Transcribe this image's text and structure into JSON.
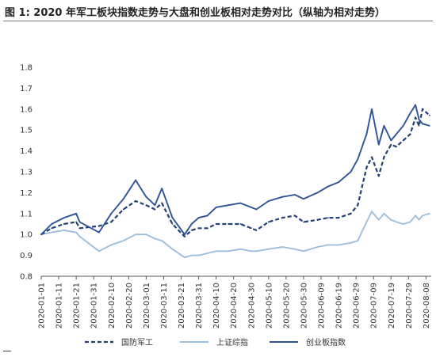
{
  "chart_data": {
    "type": "line",
    "title": "图 1:  2020 年军工板块指数走势与大盘和创业板相对走势对比（纵轴为相对走势）",
    "xlabel": "",
    "ylabel": "",
    "ylim": [
      0.8,
      1.8
    ],
    "yticks": [
      "0.8",
      "0.9",
      "1.0",
      "1.1",
      "1.2",
      "1.3",
      "1.4",
      "1.5",
      "1.6",
      "1.7",
      "1.8"
    ],
    "xticks": [
      "2020-01-01",
      "2020-01-11",
      "2020-01-21",
      "2020-01-31",
      "2020-02-10",
      "2020-02-20",
      "2020-03-01",
      "2020-03-11",
      "2020-03-21",
      "2020-03-31",
      "2020-04-10",
      "2020-04-20",
      "2020-04-30",
      "2020-05-10",
      "2020-05-20",
      "2020-05-30",
      "2020-06-09",
      "2020-06-19",
      "2020-06-29",
      "2020-07-09",
      "2020-07-19",
      "2020-07-29",
      "2020-08-08"
    ],
    "grid": false,
    "legend_position": "bottom",
    "series": [
      {
        "name": "国防军工",
        "style": "dashed",
        "color": "#243f73",
        "x": [
          "2020-01-01",
          "2020-01-07",
          "2020-01-14",
          "2020-01-21",
          "2020-01-23",
          "2020-02-03",
          "2020-02-10",
          "2020-02-17",
          "2020-02-24",
          "2020-03-01",
          "2020-03-06",
          "2020-03-10",
          "2020-03-16",
          "2020-03-23",
          "2020-03-27",
          "2020-03-31",
          "2020-04-05",
          "2020-04-10",
          "2020-04-17",
          "2020-04-24",
          "2020-04-30",
          "2020-05-03",
          "2020-05-10",
          "2020-05-18",
          "2020-05-25",
          "2020-05-30",
          "2020-06-07",
          "2020-06-13",
          "2020-06-19",
          "2020-06-26",
          "2020-06-30",
          "2020-07-05",
          "2020-07-08",
          "2020-07-12",
          "2020-07-15",
          "2020-07-19",
          "2020-07-22",
          "2020-07-26",
          "2020-07-30",
          "2020-08-02",
          "2020-08-04",
          "2020-08-06",
          "2020-08-10"
        ],
        "values": [
          1.0,
          1.03,
          1.05,
          1.06,
          1.03,
          1.04,
          1.06,
          1.12,
          1.16,
          1.14,
          1.12,
          1.15,
          1.05,
          0.99,
          1.02,
          1.03,
          1.03,
          1.05,
          1.05,
          1.05,
          1.03,
          1.02,
          1.06,
          1.08,
          1.09,
          1.06,
          1.07,
          1.08,
          1.08,
          1.1,
          1.14,
          1.32,
          1.37,
          1.28,
          1.37,
          1.43,
          1.42,
          1.45,
          1.48,
          1.56,
          1.52,
          1.6,
          1.57
        ]
      },
      {
        "name": "上证综指",
        "style": "solid",
        "color": "#9dbedc",
        "x": [
          "2020-01-01",
          "2020-01-07",
          "2020-01-14",
          "2020-01-21",
          "2020-01-23",
          "2020-02-03",
          "2020-02-10",
          "2020-02-17",
          "2020-02-24",
          "2020-03-01",
          "2020-03-06",
          "2020-03-10",
          "2020-03-16",
          "2020-03-23",
          "2020-03-27",
          "2020-03-31",
          "2020-04-05",
          "2020-04-10",
          "2020-04-17",
          "2020-04-24",
          "2020-04-30",
          "2020-05-03",
          "2020-05-10",
          "2020-05-18",
          "2020-05-25",
          "2020-05-30",
          "2020-06-07",
          "2020-06-13",
          "2020-06-19",
          "2020-06-26",
          "2020-06-30",
          "2020-07-05",
          "2020-07-08",
          "2020-07-12",
          "2020-07-15",
          "2020-07-19",
          "2020-07-22",
          "2020-07-26",
          "2020-07-30",
          "2020-08-02",
          "2020-08-04",
          "2020-08-06",
          "2020-08-10"
        ],
        "values": [
          1.0,
          1.01,
          1.02,
          1.01,
          0.99,
          0.92,
          0.95,
          0.97,
          1.0,
          1.0,
          0.98,
          0.97,
          0.93,
          0.89,
          0.9,
          0.9,
          0.91,
          0.92,
          0.92,
          0.93,
          0.92,
          0.92,
          0.93,
          0.94,
          0.93,
          0.92,
          0.94,
          0.95,
          0.95,
          0.96,
          0.97,
          1.06,
          1.11,
          1.07,
          1.1,
          1.07,
          1.06,
          1.05,
          1.06,
          1.09,
          1.07,
          1.09,
          1.1
        ]
      },
      {
        "name": "创业板指数",
        "style": "solid",
        "color": "#2f5496",
        "x": [
          "2020-01-01",
          "2020-01-07",
          "2020-01-14",
          "2020-01-21",
          "2020-01-23",
          "2020-02-03",
          "2020-02-10",
          "2020-02-17",
          "2020-02-24",
          "2020-03-01",
          "2020-03-06",
          "2020-03-10",
          "2020-03-16",
          "2020-03-23",
          "2020-03-27",
          "2020-03-31",
          "2020-04-05",
          "2020-04-10",
          "2020-04-17",
          "2020-04-24",
          "2020-04-30",
          "2020-05-03",
          "2020-05-10",
          "2020-05-18",
          "2020-05-25",
          "2020-05-30",
          "2020-06-07",
          "2020-06-13",
          "2020-06-19",
          "2020-06-26",
          "2020-06-30",
          "2020-07-05",
          "2020-07-08",
          "2020-07-12",
          "2020-07-15",
          "2020-07-19",
          "2020-07-22",
          "2020-07-26",
          "2020-07-30",
          "2020-08-02",
          "2020-08-04",
          "2020-08-06",
          "2020-08-10"
        ],
        "values": [
          1.0,
          1.05,
          1.08,
          1.1,
          1.06,
          1.01,
          1.1,
          1.17,
          1.26,
          1.18,
          1.14,
          1.22,
          1.08,
          1.0,
          1.05,
          1.08,
          1.09,
          1.13,
          1.14,
          1.15,
          1.13,
          1.12,
          1.16,
          1.18,
          1.19,
          1.17,
          1.2,
          1.23,
          1.25,
          1.3,
          1.36,
          1.48,
          1.6,
          1.43,
          1.52,
          1.45,
          1.48,
          1.52,
          1.58,
          1.62,
          1.55,
          1.53,
          1.52
        ]
      }
    ]
  }
}
